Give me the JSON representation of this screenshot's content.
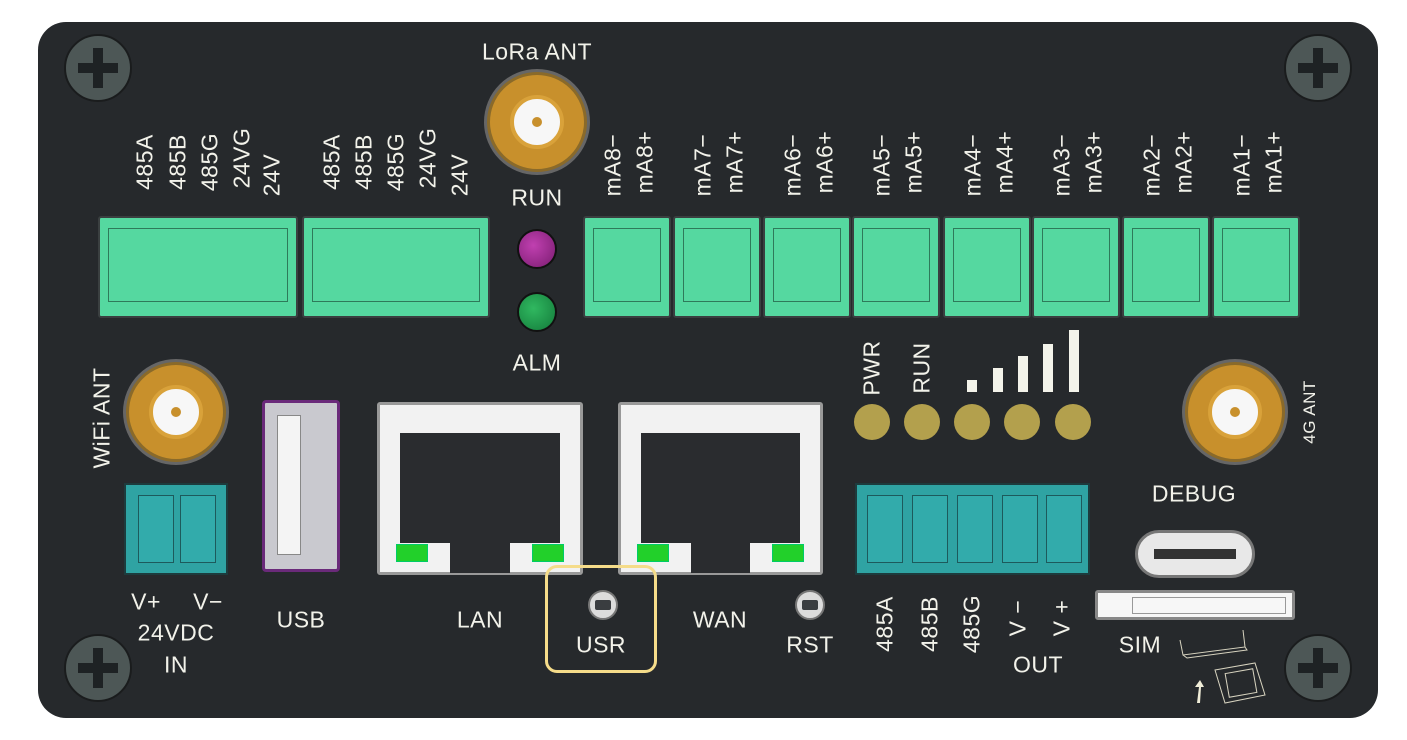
{
  "antennas": {
    "lora": "LoRa ANT",
    "wifi": "WiFi ANT",
    "lte": "4G ANT"
  },
  "indicators": {
    "run": "RUN",
    "alm": "ALM",
    "pwr": "PWR",
    "run2": "RUN"
  },
  "rs485_blocks": [
    [
      "485A",
      "485B",
      "485G",
      "24VG",
      "24V"
    ],
    [
      "485A",
      "485B",
      "485G",
      "24VG",
      "24V"
    ]
  ],
  "analog_inputs": [
    [
      "mA8−",
      "mA8+"
    ],
    [
      "mA7−",
      "mA7+"
    ],
    [
      "mA6−",
      "mA6+"
    ],
    [
      "mA5−",
      "mA5+"
    ],
    [
      "mA4−",
      "mA4+"
    ],
    [
      "mA3−",
      "mA3+"
    ],
    [
      "mA2−",
      "mA2+"
    ],
    [
      "mA1−",
      "mA1+"
    ]
  ],
  "power": {
    "vplus": "V+",
    "vminus": "V−",
    "rating": "24VDC",
    "in": "IN"
  },
  "ports": {
    "usb": "USB",
    "lan": "LAN",
    "wan": "WAN",
    "usr": "USR",
    "rst": "RST",
    "debug": "DEBUG",
    "sim": "SIM"
  },
  "output_block": {
    "labels": [
      "485A",
      "485B",
      "485G",
      "V −",
      "V +"
    ],
    "title": "OUT"
  },
  "signal_bars": 5,
  "colors": {
    "panel": "#26292c",
    "terminal_green": "#55d8a0",
    "terminal_teal": "#2fa3a3",
    "highlight": "#f5dc8a",
    "led_run": "#9a2a8e",
    "led_alm": "#1f9e4e"
  }
}
